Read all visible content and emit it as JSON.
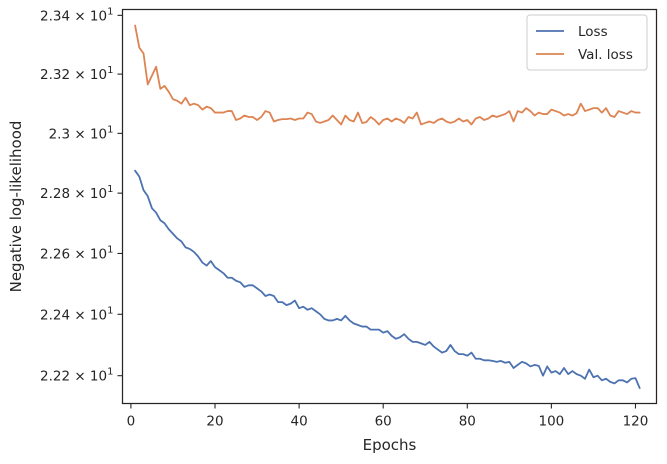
{
  "chart_data": {
    "type": "line",
    "xlabel": "Epochs",
    "ylabel": "Negative log-likelihood",
    "xlim": [
      -2,
      125
    ],
    "ylim": [
      22.11,
      23.42
    ],
    "yscale": "log",
    "grid": false,
    "legend_position": "top-right",
    "x_ticks": [
      0,
      20,
      40,
      60,
      80,
      100,
      120
    ],
    "y_ticks": [
      {
        "value": 22.2,
        "mantissa": "2.22",
        "exp": "1"
      },
      {
        "value": 22.4,
        "mantissa": "2.24",
        "exp": "1"
      },
      {
        "value": 22.6,
        "mantissa": "2.26",
        "exp": "1"
      },
      {
        "value": 22.8,
        "mantissa": "2.28",
        "exp": "1"
      },
      {
        "value": 23.0,
        "mantissa": "2.3",
        "exp": "1"
      },
      {
        "value": 23.2,
        "mantissa": "2.32",
        "exp": "1"
      },
      {
        "value": 23.4,
        "mantissa": "2.34",
        "exp": "1"
      }
    ],
    "series": [
      {
        "name": "Loss",
        "color": "#4c72b0",
        "x": [
          1,
          2,
          3,
          4,
          5,
          6,
          7,
          8,
          9,
          10,
          11,
          12,
          13,
          14,
          15,
          16,
          17,
          18,
          19,
          20,
          21,
          22,
          23,
          24,
          25,
          26,
          27,
          28,
          29,
          30,
          31,
          32,
          33,
          34,
          35,
          36,
          37,
          38,
          39,
          40,
          41,
          42,
          43,
          44,
          45,
          46,
          47,
          48,
          49,
          50,
          51,
          52,
          53,
          54,
          55,
          56,
          57,
          58,
          59,
          60,
          61,
          62,
          63,
          64,
          65,
          66,
          67,
          68,
          69,
          70,
          71,
          72,
          73,
          74,
          75,
          76,
          77,
          78,
          79,
          80,
          81,
          82,
          83,
          84,
          85,
          86,
          87,
          88,
          89,
          90,
          91,
          92,
          93,
          94,
          95,
          96,
          97,
          98,
          99,
          100,
          101,
          102,
          103,
          104,
          105,
          106,
          107,
          108,
          109,
          110,
          111,
          112,
          113,
          114,
          115,
          116,
          117,
          118,
          119,
          120,
          121
        ],
        "values": [
          22.875,
          22.855,
          22.81,
          22.79,
          22.75,
          22.735,
          22.71,
          22.7,
          22.68,
          22.665,
          22.65,
          22.64,
          22.62,
          22.615,
          22.605,
          22.59,
          22.57,
          22.56,
          22.575,
          22.555,
          22.545,
          22.535,
          22.52,
          22.52,
          22.51,
          22.505,
          22.49,
          22.495,
          22.495,
          22.485,
          22.475,
          22.46,
          22.465,
          22.46,
          22.44,
          22.44,
          22.43,
          22.435,
          22.445,
          22.42,
          22.425,
          22.415,
          22.42,
          22.41,
          22.4,
          22.385,
          22.38,
          22.38,
          22.385,
          22.38,
          22.395,
          22.38,
          22.37,
          22.365,
          22.36,
          22.36,
          22.35,
          22.35,
          22.35,
          22.34,
          22.345,
          22.33,
          22.32,
          22.325,
          22.335,
          22.32,
          22.31,
          22.31,
          22.305,
          22.3,
          22.31,
          22.295,
          22.285,
          22.275,
          22.28,
          22.3,
          22.28,
          22.27,
          22.27,
          22.265,
          22.275,
          22.255,
          22.255,
          22.25,
          22.25,
          22.248,
          22.245,
          22.248,
          22.242,
          22.245,
          22.225,
          22.235,
          22.245,
          22.24,
          22.23,
          22.235,
          22.232,
          22.2,
          22.23,
          22.21,
          22.215,
          22.205,
          22.225,
          22.205,
          22.215,
          22.205,
          22.2,
          22.19,
          22.22,
          22.195,
          22.2,
          22.185,
          22.19,
          22.18,
          22.175,
          22.185,
          22.185,
          22.178,
          22.19,
          22.192,
          22.16
        ]
      },
      {
        "name": "Val. loss",
        "color": "#dd8452",
        "x": [
          1,
          2,
          3,
          4,
          5,
          6,
          7,
          8,
          9,
          10,
          11,
          12,
          13,
          14,
          15,
          16,
          17,
          18,
          19,
          20,
          21,
          22,
          23,
          24,
          25,
          26,
          27,
          28,
          29,
          30,
          31,
          32,
          33,
          34,
          35,
          36,
          37,
          38,
          39,
          40,
          41,
          42,
          43,
          44,
          45,
          46,
          47,
          48,
          49,
          50,
          51,
          52,
          53,
          54,
          55,
          56,
          57,
          58,
          59,
          60,
          61,
          62,
          63,
          64,
          65,
          66,
          67,
          68,
          69,
          70,
          71,
          72,
          73,
          74,
          75,
          76,
          77,
          78,
          79,
          80,
          81,
          82,
          83,
          84,
          85,
          86,
          87,
          88,
          89,
          90,
          91,
          92,
          93,
          94,
          95,
          96,
          97,
          98,
          99,
          100,
          101,
          102,
          103,
          104,
          105,
          106,
          107,
          108,
          109,
          110,
          111,
          112,
          113,
          114,
          115,
          116,
          117,
          118,
          119,
          120,
          121
        ],
        "values": [
          23.365,
          23.29,
          23.27,
          23.165,
          23.195,
          23.225,
          23.15,
          23.16,
          23.14,
          23.115,
          23.11,
          23.1,
          23.12,
          23.095,
          23.1,
          23.095,
          23.08,
          23.09,
          23.085,
          23.07,
          23.07,
          23.07,
          23.075,
          23.075,
          23.045,
          23.05,
          23.06,
          23.055,
          23.055,
          23.045,
          23.055,
          23.075,
          23.07,
          23.04,
          23.045,
          23.048,
          23.048,
          23.05,
          23.045,
          23.05,
          23.05,
          23.07,
          23.065,
          23.04,
          23.035,
          23.04,
          23.045,
          23.06,
          23.045,
          23.03,
          23.06,
          23.045,
          23.04,
          23.07,
          23.035,
          23.038,
          23.055,
          23.045,
          23.03,
          23.045,
          23.05,
          23.04,
          23.05,
          23.045,
          23.035,
          23.055,
          23.05,
          23.07,
          23.03,
          23.035,
          23.04,
          23.035,
          23.045,
          23.05,
          23.04,
          23.035,
          23.04,
          23.05,
          23.04,
          23.045,
          23.03,
          23.05,
          23.055,
          23.045,
          23.05,
          23.06,
          23.055,
          23.06,
          23.065,
          23.075,
          23.04,
          23.075,
          23.07,
          23.085,
          23.075,
          23.06,
          23.07,
          23.065,
          23.065,
          23.08,
          23.075,
          23.07,
          23.06,
          23.065,
          23.06,
          23.068,
          23.1,
          23.075,
          23.08,
          23.085,
          23.085,
          23.07,
          23.085,
          23.06,
          23.055,
          23.075,
          23.07,
          23.065,
          23.075,
          23.07,
          23.07
        ]
      }
    ]
  }
}
